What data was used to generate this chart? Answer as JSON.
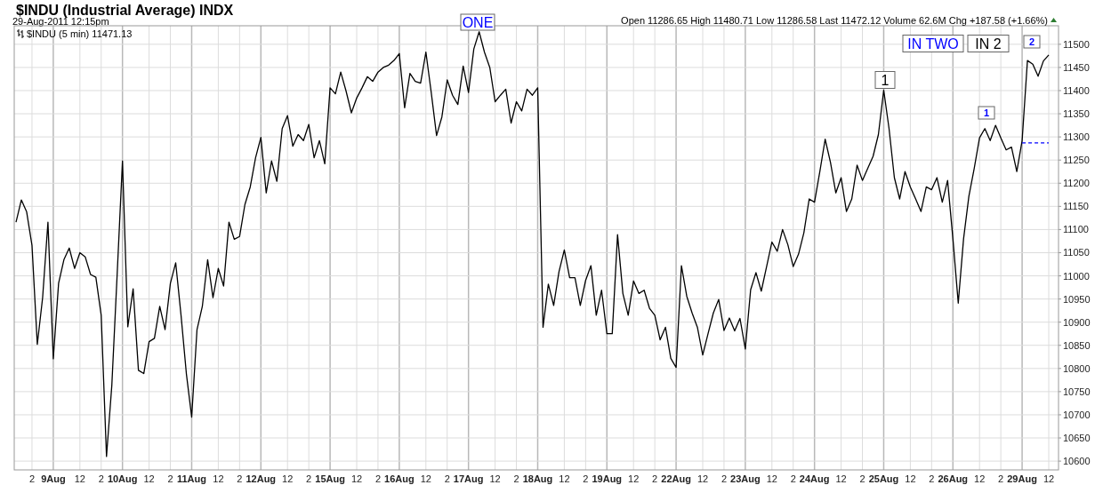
{
  "chart_data": {
    "type": "line",
    "title": "$INDU (Industrial Average) INDX",
    "subtitle": "29-Aug-2011 12:15pm",
    "annotations": [
      "$INDU (5 min) 11471.13",
      "Open 11286.65  High 11480.71  Low 11286.58  Last 11472.12  Volume 62.6M  Chg +187.58 (+1.66%)",
      "IN TWO",
      "IN 2",
      "ONE",
      "1",
      "1",
      "2"
    ],
    "categories": [
      null,
      null,
      null,
      "2",
      null,
      null,
      null,
      "9Aug",
      null,
      null,
      null,
      null,
      "12",
      null,
      null,
      null,
      "2",
      null,
      null,
      null,
      "10Aug",
      null,
      null,
      null,
      null,
      "12",
      null,
      null,
      null,
      "2",
      null,
      null,
      null,
      "11Aug",
      null,
      null,
      null,
      null,
      "12",
      null,
      null,
      null,
      "2",
      null,
      null,
      null,
      "12Aug",
      null,
      null,
      null,
      null,
      "12",
      null,
      null,
      null,
      "2",
      null,
      null,
      null,
      "15Aug",
      null,
      null,
      null,
      null,
      "12",
      null,
      null,
      null,
      "2",
      null,
      null,
      null,
      "16Aug",
      null,
      null,
      null,
      null,
      "12",
      null,
      null,
      null,
      "2",
      null,
      null,
      null,
      "17Aug",
      null,
      null,
      null,
      null,
      "12",
      null,
      null,
      null,
      "2",
      null,
      null,
      null,
      "18Aug",
      null,
      null,
      null,
      null,
      "12",
      null,
      null,
      null,
      "2",
      null,
      null,
      null,
      "19Aug",
      null,
      null,
      null,
      null,
      "12",
      null,
      null,
      null,
      "2",
      null,
      null,
      null,
      "22Aug",
      null,
      null,
      null,
      null,
      "12",
      null,
      null,
      null,
      "2",
      null,
      null,
      null,
      "23Aug",
      null,
      null,
      null,
      null,
      "12",
      null,
      null,
      null,
      "2",
      null,
      null,
      null,
      "24Aug",
      null,
      null,
      null,
      null,
      "12",
      null,
      null,
      null,
      "2",
      null,
      null,
      null,
      "25Aug",
      null,
      null,
      null,
      null,
      "12",
      null,
      null,
      null,
      "2",
      null,
      null,
      null,
      "26Aug",
      null,
      null,
      null,
      null,
      "12",
      null,
      null,
      null,
      "2",
      null,
      null,
      null,
      "29Aug",
      null,
      null,
      null,
      null,
      "12"
    ],
    "ylim": [
      10581,
      11540
    ],
    "yticks": [
      10600,
      10650,
      10700,
      10750,
      10800,
      10850,
      10900,
      10950,
      11000,
      11050,
      11100,
      11150,
      11200,
      11250,
      11300,
      11350,
      11400,
      11450,
      11500
    ],
    "grid": true,
    "series": [
      {
        "color": "#000000",
        "values": [
          11116,
          11164,
          11138,
          11066,
          10852,
          10953,
          11116,
          10821,
          10984,
          11035,
          11060,
          11016,
          11050,
          11041,
          11003,
          10997,
          10915,
          10610,
          10764,
          11003,
          11248,
          10890,
          10972,
          10796,
          10789,
          10858,
          10865,
          10934,
          10884,
          10984,
          11028,
          10915,
          10789,
          10695,
          10884,
          10934,
          11035,
          10953,
          11016,
          10978,
          11116,
          11079,
          11085,
          11154,
          11192,
          11255,
          11299,
          11179,
          11248,
          11204,
          11318,
          11346,
          11280,
          11305,
          11292,
          11327,
          11255,
          11292,
          11242,
          11406,
          11393,
          11440,
          11399,
          11352,
          11384,
          11406,
          11430,
          11420,
          11440,
          11450,
          11455,
          11465,
          11480,
          11363,
          11437,
          11420,
          11416,
          11483,
          11396,
          11303,
          11343,
          11423,
          11390,
          11370,
          11453,
          11396,
          11490,
          11527,
          11483,
          11450,
          11376,
          11390,
          11403,
          11330,
          11376,
          11356,
          11403,
          11390,
          11406,
          10889,
          10982,
          10936,
          11009,
          11056,
          10996,
          10996,
          10936,
          10990,
          11022,
          10915,
          10969,
          10875,
          10875,
          11089,
          10962,
          10915,
          10989,
          10962,
          10969,
          10930,
          10915,
          10862,
          10889,
          10822,
          10802,
          11022,
          10956,
          10920,
          10889,
          10829,
          10875,
          10920,
          10949,
          10882,
          10909,
          10881,
          10908,
          10842,
          10970,
          11007,
          10967,
          11020,
          11073,
          11053,
          11100,
          11067,
          11020,
          11047,
          11093,
          11166,
          11159,
          11225,
          11295,
          11245,
          11179,
          11212,
          11139,
          11166,
          11239,
          11206,
          11232,
          11258,
          11305,
          11401,
          11318,
          11212,
          11166,
          11225,
          11192,
          11166,
          11139,
          11192,
          11186,
          11212,
          11159,
          11206,
          11080,
          10941,
          11080,
          11172,
          11232,
          11298,
          11318,
          11292,
          11325,
          11298,
          11272,
          11278,
          11225,
          11292,
          11465,
          11457,
          11431,
          11464,
          11477
        ]
      },
      {
        "color": "#0000ff",
        "line_style": "dashed",
        "values": [
          null,
          null,
          null,
          null,
          null,
          null,
          null,
          null,
          null,
          null,
          null,
          null,
          null,
          null,
          null,
          null,
          null,
          null,
          null,
          null,
          null,
          null,
          null,
          null,
          null,
          null,
          null,
          null,
          null,
          null,
          null,
          null,
          null,
          null,
          null,
          null,
          null,
          null,
          null,
          null,
          null,
          null,
          null,
          null,
          null,
          null,
          null,
          null,
          null,
          null,
          null,
          null,
          null,
          null,
          null,
          null,
          null,
          null,
          null,
          null,
          null,
          null,
          null,
          null,
          null,
          null,
          null,
          null,
          null,
          null,
          null,
          null,
          null,
          null,
          null,
          null,
          null,
          null,
          null,
          null,
          null,
          null,
          null,
          null,
          null,
          null,
          null,
          null,
          null,
          null,
          null,
          null,
          null,
          null,
          null,
          null,
          null,
          null,
          null,
          null,
          null,
          null,
          null,
          null,
          null,
          null,
          null,
          null,
          null,
          null,
          null,
          null,
          null,
          null,
          null,
          null,
          null,
          null,
          null,
          null,
          null,
          null,
          null,
          null,
          null,
          null,
          null,
          null,
          null,
          null,
          null,
          null,
          null,
          null,
          null,
          null,
          null,
          null,
          null,
          null,
          null,
          null,
          null,
          null,
          null,
          null,
          null,
          null,
          null,
          null,
          null,
          null,
          null,
          null,
          null,
          null,
          null,
          null,
          null,
          null,
          null,
          null,
          null,
          null,
          null,
          null,
          null,
          null,
          null,
          null,
          null,
          null,
          null,
          null,
          null,
          null,
          null,
          null,
          null,
          null,
          null,
          null,
          null,
          null,
          null,
          null,
          null,
          null,
          null,
          11287,
          11287,
          11287,
          11287,
          11287,
          11287
        ]
      }
    ]
  }
}
